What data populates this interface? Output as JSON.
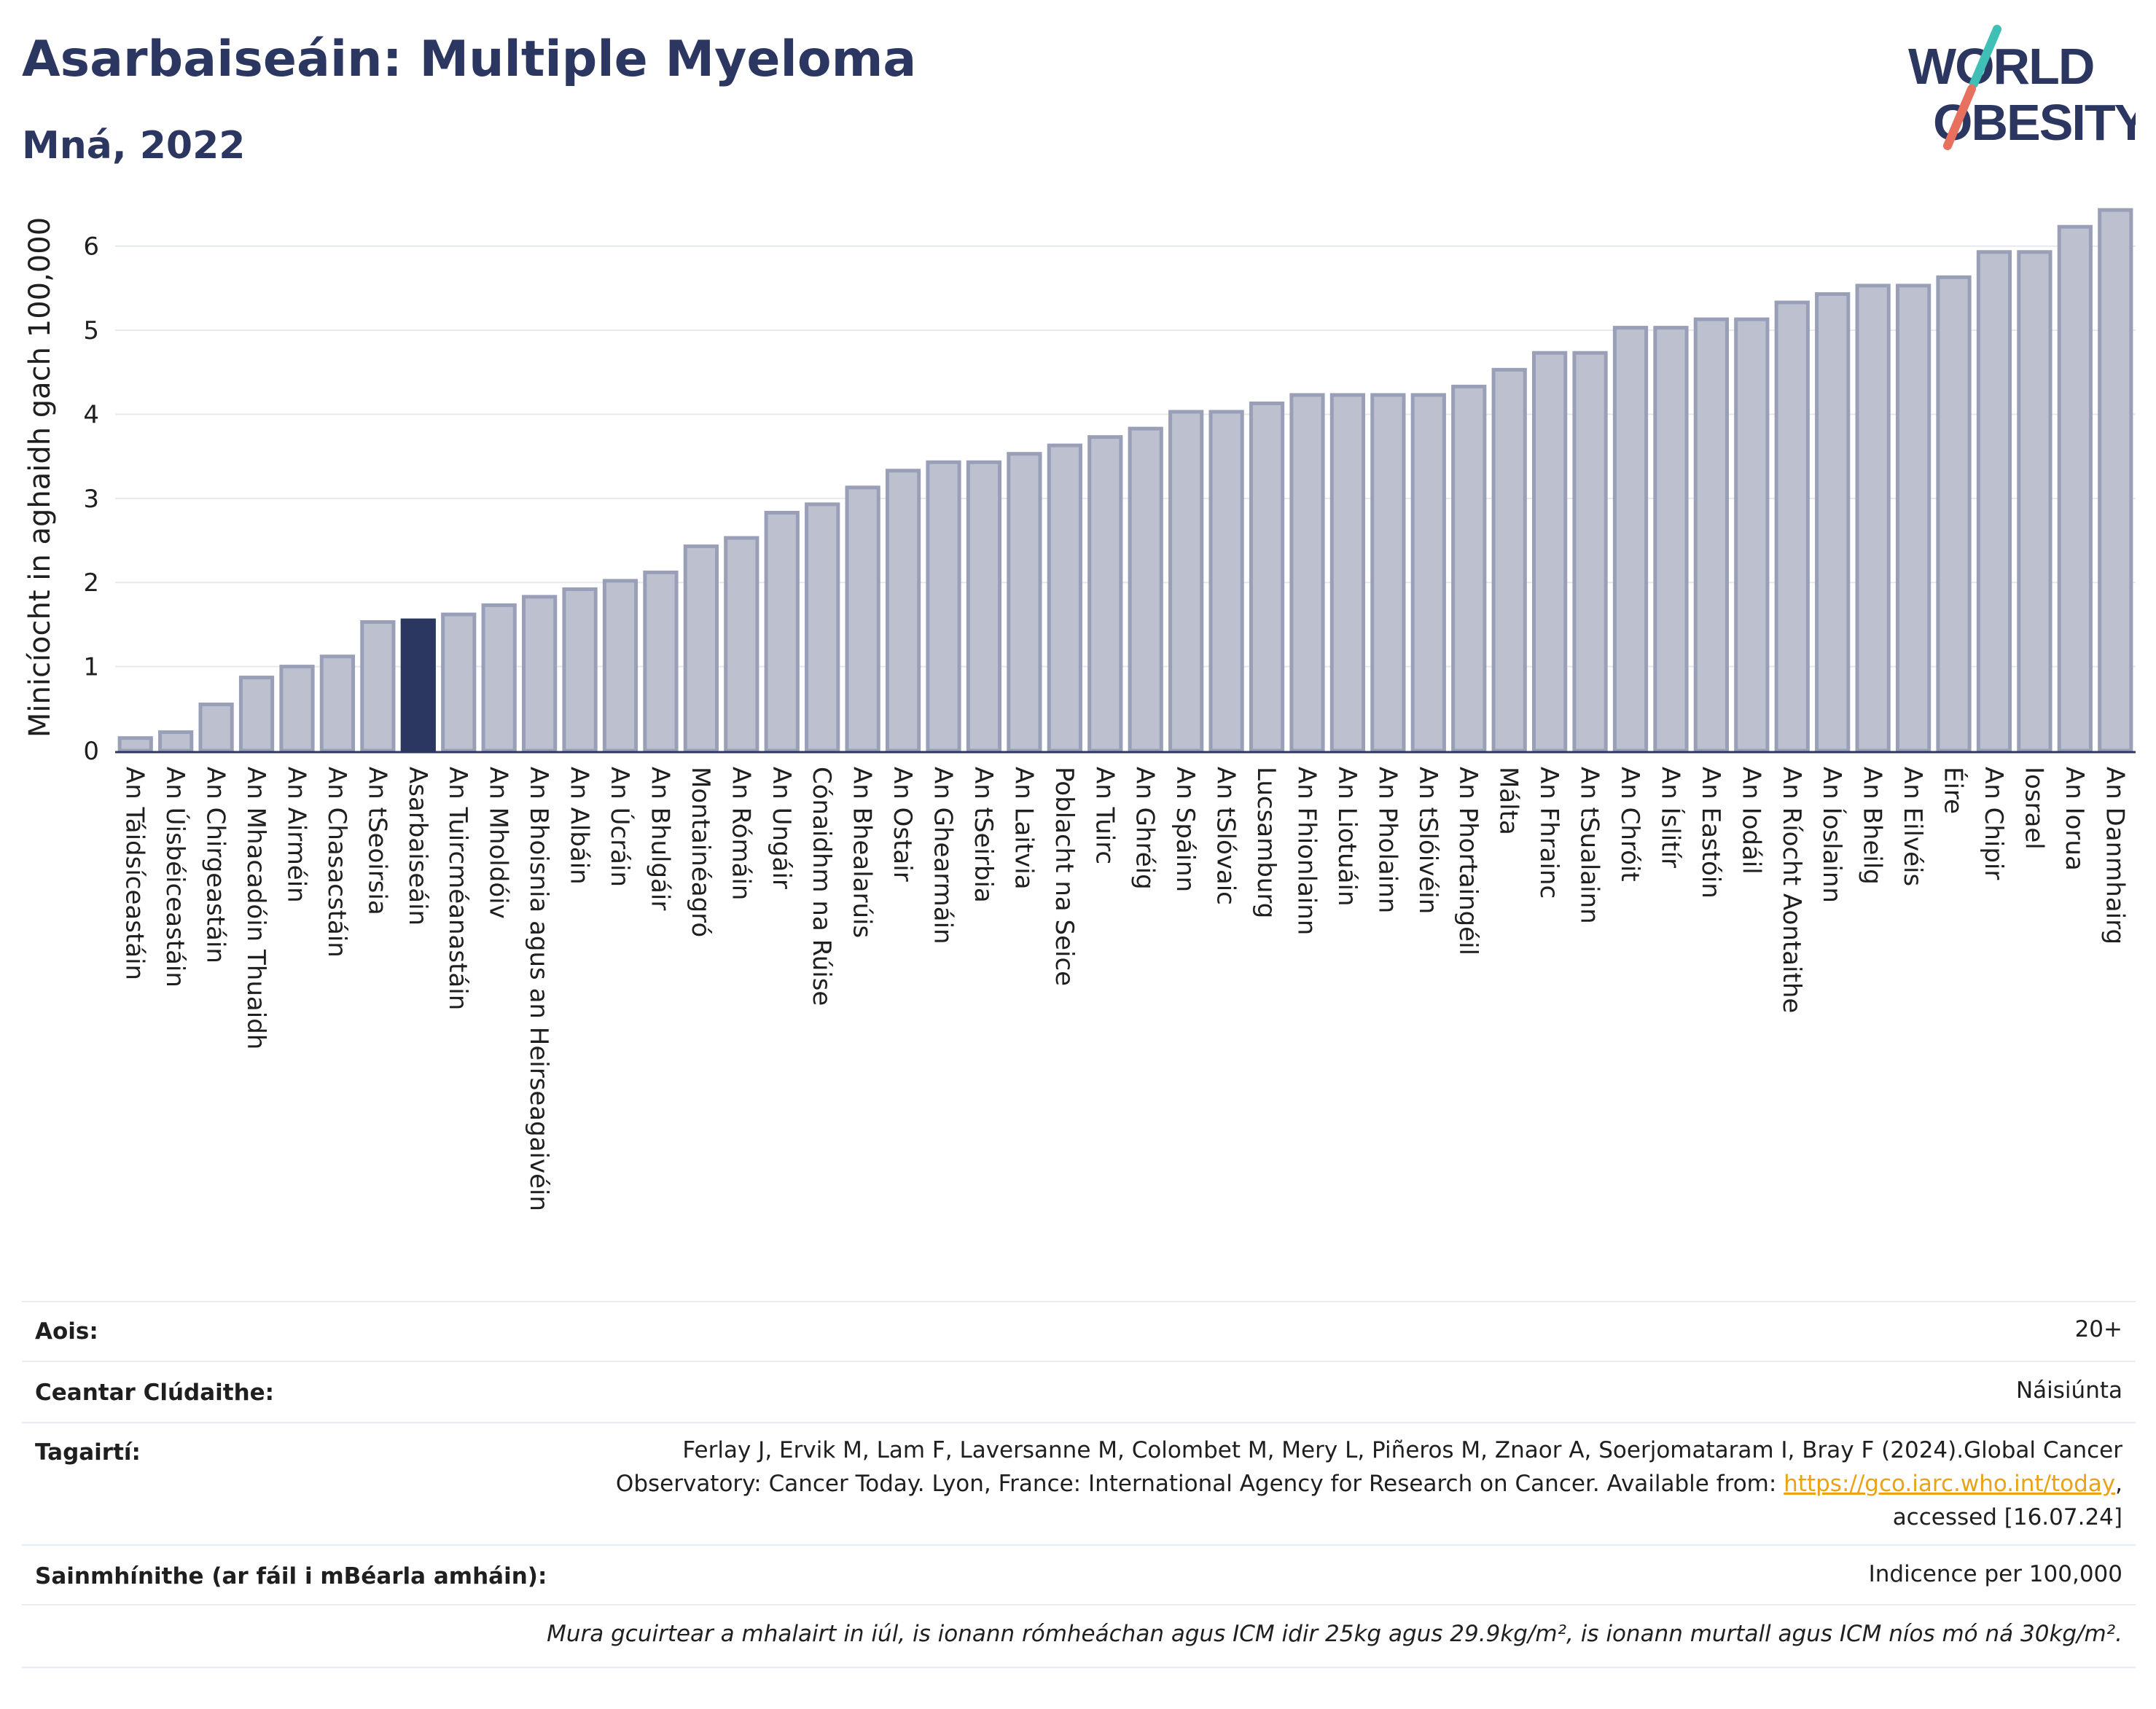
{
  "header": {
    "title": "Asarbaiseáin: Multiple Myeloma",
    "subtitle": "Mná, 2022",
    "logo_line1": "WORLD",
    "logo_line2": "OBESITY"
  },
  "colors": {
    "highlight": "#2b3760",
    "bar": "#bcc0cf",
    "bar_stroke": "#9a9fb8",
    "title": "#2b3760",
    "logo_teal": "#3fbfb5",
    "logo_red": "#e8705f"
  },
  "chart_data": {
    "type": "bar",
    "title": "",
    "xlabel": "",
    "ylabel": "Minicíocht in aghaidh gach 100,000",
    "ylim": [
      0,
      6.5
    ],
    "yticks": [
      0,
      1,
      2,
      3,
      4,
      5,
      6
    ],
    "grid": true,
    "highlight_category": "Asarbaiseáin",
    "categories": [
      "An Táidsíceastáin",
      "An Úisbéiceastáin",
      "An Chirgeastáin",
      "An Mhacadóin Thuaidh",
      "An Airméin",
      "An Chasacstáin",
      "An tSeoirsia",
      "Asarbaiseáin",
      "An Tuircméanastáin",
      "An Mholdóiv",
      "An Bhoisnia agus an Heirseagaivéin",
      "An Albáin",
      "An Úcráin",
      "An Bhulgáir",
      "Montainéagró",
      "An Rómáin",
      "An Ungáir",
      "Cónaidhm na Rúise",
      "An Bhealarúis",
      "An Ostair",
      "An Ghearmáin",
      "An tSeirbia",
      "An Laitvia",
      "Poblacht na Seice",
      "An Tuirc",
      "An Ghréig",
      "An Spáinn",
      "An tSlóvaic",
      "Lucsamburg",
      "An Fhionlainn",
      "An Liotuáin",
      "An Pholainn",
      "An tSlóivéin",
      "An Phortaingéil",
      "Málta",
      "An Fhrainc",
      "An tSualainn",
      "An Chróit",
      "An Íslitír",
      "An Eastóin",
      "An Iodáil",
      "An Ríocht Aontaithe",
      "An Íoslainn",
      "An Bheilg",
      "An Eilvéis",
      "Éire",
      "An Chipir",
      "Iosrael",
      "An Iorua",
      "An Danmhairg"
    ],
    "values": [
      0.15,
      0.22,
      0.55,
      0.87,
      1.0,
      1.12,
      1.53,
      1.55,
      1.62,
      1.73,
      1.83,
      1.92,
      2.02,
      2.12,
      2.43,
      2.53,
      2.83,
      2.93,
      3.13,
      3.33,
      3.43,
      3.43,
      3.53,
      3.63,
      3.73,
      3.83,
      4.03,
      4.03,
      4.13,
      4.23,
      4.23,
      4.23,
      4.23,
      4.33,
      4.53,
      4.73,
      4.73,
      5.03,
      5.03,
      5.13,
      5.13,
      5.33,
      5.43,
      5.53,
      5.53,
      5.63,
      5.93,
      5.93,
      6.23,
      6.43
    ]
  },
  "info": {
    "age_label": "Aois:",
    "age_value": "20+",
    "area_label": "Ceantar Clúdaithe:",
    "area_value": "Náisiúnta",
    "refs_label": "Tagairtí:",
    "refs_line1": "Ferlay J, Ervik M, Lam F, Laversanne M, Colombet M, Mery L, Piñeros M, Znaor A, Soerjomataram I, Bray F (2024).Global Cancer",
    "refs_line2": "Observatory: Cancer Today. Lyon, France: International Agency for Research on Cancer. Available from: ",
    "refs_link": "https://gco.iarc.who.int/today",
    "refs_line2_end": ",",
    "refs_line3": "accessed [16.07.24]",
    "defs_label": "Sainmhínithe (ar fáil i mBéarla amháin):",
    "defs_value": "Indicence per 100,000",
    "note": "Mura gcuirtear a mhalairt in iúl, is ionann rómheáchan agus ICM idir 25kg agus 29.9kg/m², is ionann murtall agus ICM níos mó ná 30kg/m²."
  }
}
